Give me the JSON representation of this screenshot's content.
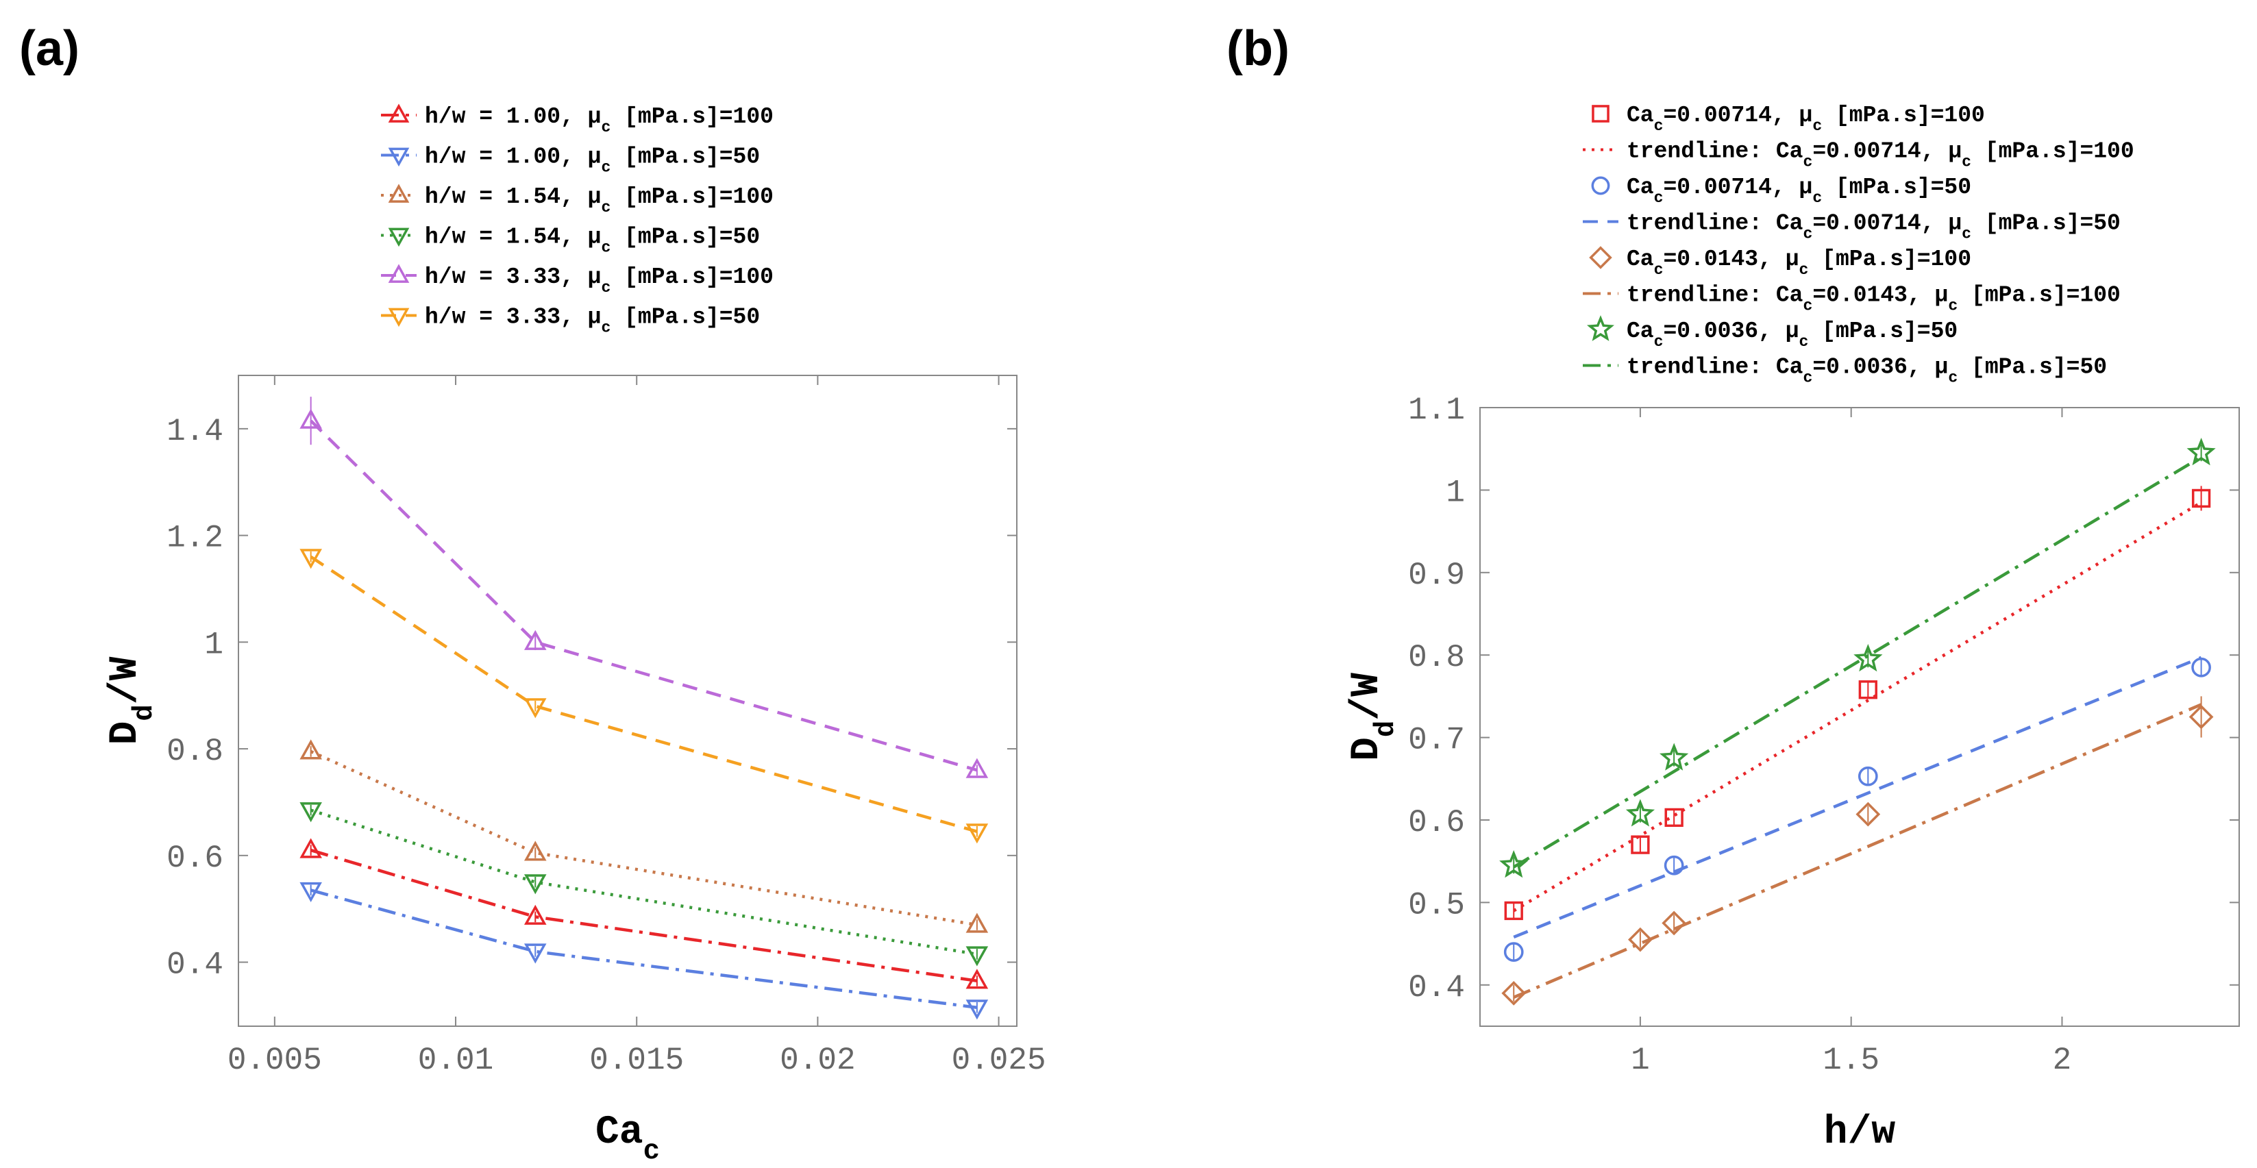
{
  "chart_data": [
    {
      "panel": "(a)",
      "type": "line",
      "xlabel": "Ca",
      "xlabel_sub": "c",
      "ylabel": "D",
      "ylabel_sub": "d",
      "ylabel_suffix": "/W",
      "xlim": [
        0.004,
        0.0255
      ],
      "ylim": [
        0.28,
        1.5
      ],
      "xticks": [
        0.005,
        0.01,
        0.015,
        0.02,
        0.025
      ],
      "xtick_labels": [
        "0.005",
        "0.01",
        "0.015",
        "0.02",
        "0.025"
      ],
      "yticks": [
        0.4,
        0.6,
        0.8,
        1.0,
        1.2,
        1.4
      ],
      "ytick_labels": [
        "0.4",
        "0.6",
        "0.8",
        "1",
        "1.2",
        "1.4"
      ],
      "x": [
        0.006,
        0.0122,
        0.0244
      ],
      "legend_position": "top",
      "series": [
        {
          "name": "h/w = 1.00, μ",
          "name_sub": "c",
          "name_tail": " [mPa.s]=100",
          "color": "#e8262a",
          "marker": "triangle-up",
          "dash": "dashdot",
          "values": [
            0.61,
            0.485,
            0.365
          ],
          "errors": [
            0.01,
            0.01,
            0.01
          ]
        },
        {
          "name": "h/w = 1.00, μ",
          "name_sub": "c",
          "name_tail": " [mPa.s]=50",
          "color": "#5b7fe0",
          "marker": "triangle-down",
          "dash": "dashdot",
          "values": [
            0.535,
            0.42,
            0.315
          ],
          "errors": [
            0.01,
            0.01,
            0.01
          ]
        },
        {
          "name": "h/w = 1.54, μ",
          "name_sub": "c",
          "name_tail": " [mPa.s]=100",
          "color": "#c8784a",
          "marker": "triangle-up",
          "dash": "dotted",
          "values": [
            0.795,
            0.605,
            0.47
          ],
          "errors": [
            0.01,
            0.01,
            0.01
          ]
        },
        {
          "name": "h/w = 1.54, μ",
          "name_sub": "c",
          "name_tail": " [mPa.s]=50",
          "color": "#3a9a3a",
          "marker": "triangle-down",
          "dash": "dotted",
          "values": [
            0.685,
            0.55,
            0.415
          ],
          "errors": [
            0.01,
            0.01,
            0.01
          ]
        },
        {
          "name": "h/w = 3.33, μ",
          "name_sub": "c",
          "name_tail": " [mPa.s]=100",
          "color": "#bb6ad8",
          "marker": "triangle-up",
          "dash": "dashed",
          "values": [
            1.415,
            1.0,
            0.76
          ],
          "errors": [
            0.045,
            0.015,
            0.01
          ]
        },
        {
          "name": "h/w = 3.33, μ",
          "name_sub": "c",
          "name_tail": " [mPa.s]=50",
          "color": "#f5a020",
          "marker": "triangle-down",
          "dash": "dashed",
          "values": [
            1.16,
            0.88,
            0.645
          ],
          "errors": [
            0.01,
            0.01,
            0.01
          ]
        }
      ]
    },
    {
      "panel": "(b)",
      "type": "scatter",
      "xlabel": "h/w",
      "ylabel": "D",
      "ylabel_sub": "d",
      "ylabel_suffix": "/W",
      "xlim": [
        0.62,
        2.42
      ],
      "ylim": [
        0.35,
        1.1
      ],
      "xticks": [
        1,
        1.5,
        2
      ],
      "xtick_labels": [
        "1",
        "1.5",
        "2"
      ],
      "yticks": [
        0.4,
        0.5,
        0.6,
        0.7,
        0.8,
        0.9,
        1.0,
        1.1
      ],
      "ytick_labels": [
        "0.4",
        "0.5",
        "0.6",
        "0.7",
        "0.8",
        "0.9",
        "1",
        "1.1"
      ],
      "legend_position": "top",
      "series": [
        {
          "name": "Ca",
          "name_sub": "c",
          "name_tail": "=0.00714, μ",
          "name_sub2": "c",
          "name_tail2": " [mPa.s]=100",
          "color": "#e8262a",
          "marker": "square",
          "x": [
            0.7,
            1.0,
            1.08,
            1.54,
            2.33
          ],
          "values": [
            0.49,
            0.57,
            0.603,
            0.758,
            0.99
          ],
          "errors": [
            0.01,
            0.01,
            0.01,
            0.01,
            0.015
          ],
          "trend_name": "trendline: Ca",
          "trend_tail": "=0.00714, μ",
          "trend_tail2": " [mPa.s]=100",
          "trend_dash": "dotted",
          "trend": [
            [
              0.7,
              0.49
            ],
            [
              2.33,
              0.985
            ]
          ]
        },
        {
          "name": "Ca",
          "name_sub": "c",
          "name_tail": "=0.00714, μ",
          "name_sub2": "c",
          "name_tail2": " [mPa.s]=50",
          "color": "#5b7fe0",
          "marker": "circle",
          "x": [
            0.7,
            1.08,
            1.54,
            2.33
          ],
          "values": [
            0.44,
            0.545,
            0.653,
            0.785
          ],
          "errors": [
            0.01,
            0.01,
            0.01,
            0.01
          ],
          "trend_name": "trendline: Ca",
          "trend_tail": "=0.00714, μ",
          "trend_tail2": " [mPa.s]=50",
          "trend_dash": "dashed",
          "trend": [
            [
              0.7,
              0.458
            ],
            [
              2.33,
              0.797
            ]
          ]
        },
        {
          "name": "Ca",
          "name_sub": "c",
          "name_tail": "=0.0143, μ",
          "name_sub2": "c",
          "name_tail2": " [mPa.s]=100",
          "color": "#c8784a",
          "marker": "diamond",
          "x": [
            0.7,
            1.0,
            1.08,
            1.54,
            2.33
          ],
          "values": [
            0.39,
            0.455,
            0.475,
            0.607,
            0.725
          ],
          "errors": [
            0.01,
            0.01,
            0.01,
            0.01,
            0.025
          ],
          "trend_name": "trendline: Ca",
          "trend_tail": "=0.0143, μ",
          "trend_tail2": " [mPa.s]=100",
          "trend_dash": "dashdot",
          "trend": [
            [
              0.7,
              0.385
            ],
            [
              2.33,
              0.74
            ]
          ]
        },
        {
          "name": "Ca",
          "name_sub": "c",
          "name_tail": "=0.0036, μ",
          "name_sub2": "c",
          "name_tail2": " [mPa.s]=50",
          "color": "#3a9a3a",
          "marker": "star",
          "x": [
            0.7,
            1.0,
            1.08,
            1.54,
            2.33
          ],
          "values": [
            0.545,
            0.607,
            0.675,
            0.795,
            1.045
          ],
          "errors": [
            0.01,
            0.01,
            0.01,
            0.01,
            0.01
          ],
          "trend_name": "trendline: Ca",
          "trend_tail": "=0.0036, μ",
          "trend_tail2": " [mPa.s]=50",
          "trend_dash": "dashdot",
          "trend": [
            [
              0.7,
              0.543
            ],
            [
              2.33,
              1.04
            ]
          ]
        }
      ]
    }
  ]
}
